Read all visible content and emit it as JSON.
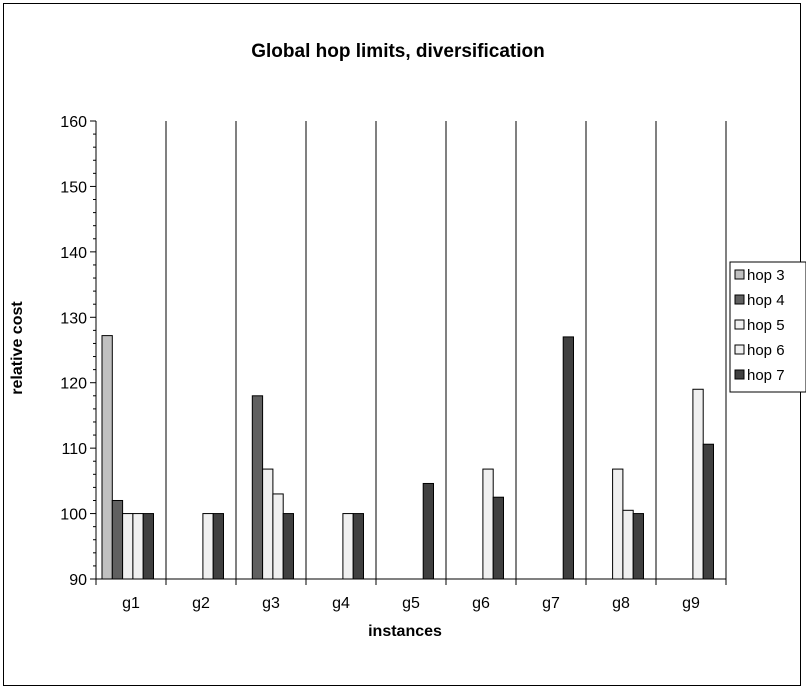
{
  "chart_data": {
    "type": "bar",
    "title": "Global hop limits, diversification",
    "xlabel": "instances",
    "ylabel": "relative cost",
    "ylim": [
      90,
      160
    ],
    "yticks": [
      90,
      100,
      110,
      120,
      130,
      140,
      150,
      160
    ],
    "categories": [
      "g1",
      "g2",
      "g3",
      "g4",
      "g5",
      "g6",
      "g7",
      "g8",
      "g9"
    ],
    "series": [
      {
        "name": "hop 3",
        "color": "#c0c0c0",
        "values": [
          127.2,
          null,
          null,
          null,
          null,
          null,
          null,
          null,
          null
        ]
      },
      {
        "name": "hop 4",
        "color": "#606060",
        "values": [
          102,
          null,
          118,
          null,
          null,
          null,
          null,
          null,
          null
        ]
      },
      {
        "name": "hop 5",
        "color": "#f0f0f0",
        "values": [
          100,
          null,
          106.8,
          null,
          null,
          null,
          null,
          106.8,
          null
        ]
      },
      {
        "name": "hop 6",
        "color": "#f0f0f0",
        "values": [
          100,
          100,
          103,
          100,
          null,
          106.8,
          null,
          100.5,
          119
        ]
      },
      {
        "name": "hop 7",
        "color": "#404040",
        "values": [
          100,
          100,
          100,
          100,
          104.6,
          102.5,
          127,
          100,
          110.6
        ]
      }
    ],
    "grid": "vertical category separators",
    "legend": "right"
  }
}
